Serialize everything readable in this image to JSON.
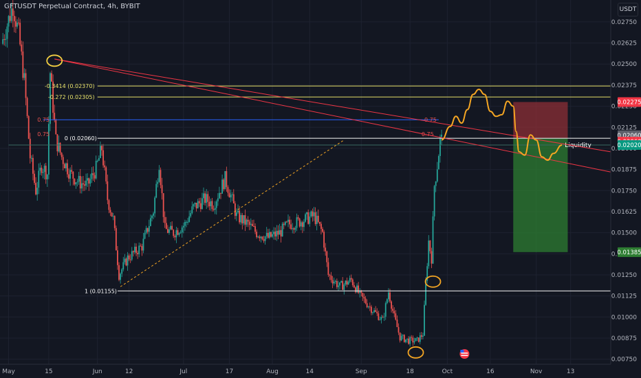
{
  "header": {
    "title": "GFTUSDT Perpetual Contract, 4h, BYBIT",
    "currency_button": "USDT"
  },
  "colors": {
    "background": "#131722",
    "grid": "#1e2230",
    "axis_text": "#b2b5be",
    "candle_up": "#26a69a",
    "candle_down": "#ef5350",
    "fib_line": "#e8e26a",
    "white_line": "#e0e0e0",
    "trend_line": "#f23645",
    "blue_line": "#2962ff",
    "projection": "#f5a623",
    "circle_yellow": "#f5d142",
    "circle_orange": "#f5a623",
    "stop_zone": "#8c2f35",
    "target_zone": "#2e7d32"
  },
  "chart_data": {
    "type": "candlestick",
    "title": "GFTUSDT Perpetual Contract, 4h, BYBIT",
    "y_axis": {
      "ticks": [
        0.0275,
        0.02625,
        0.025,
        0.02375,
        0.0225,
        0.02125,
        0.02,
        0.01875,
        0.0175,
        0.01625,
        0.015,
        0.01375,
        0.0125,
        0.01125,
        0.01,
        0.00875,
        0.0075
      ],
      "tick_labels": [
        "0.02750",
        "0.02625",
        "0.02500",
        "0.02375",
        "0.02250",
        "0.02125",
        "0.02000",
        "0.01875",
        "0.01750",
        "0.01625",
        "0.01500",
        "0.01375",
        "0.01250",
        "0.01125",
        "0.01000",
        "0.00875",
        "0.00750"
      ],
      "range": [
        0.0072,
        0.0288
      ]
    },
    "x_axis": {
      "tick_labels": [
        "May",
        "15",
        "Jun",
        "12",
        "Jul",
        "17",
        "Aug",
        "14",
        "Sep",
        "18",
        "Oct",
        "16",
        "Nov",
        "13"
      ],
      "tick_days": [
        0,
        14,
        31,
        42,
        61,
        77,
        92,
        105,
        123,
        140,
        153,
        168,
        184,
        196
      ],
      "range_days": [
        -3,
        210
      ]
    },
    "price_waypoints": [
      {
        "day": -2,
        "price": 0.0262
      },
      {
        "day": 2,
        "price": 0.0285
      },
      {
        "day": 4,
        "price": 0.0268
      },
      {
        "day": 6,
        "price": 0.024
      },
      {
        "day": 8,
        "price": 0.0195
      },
      {
        "day": 10,
        "price": 0.0175
      },
      {
        "day": 12,
        "price": 0.019
      },
      {
        "day": 14,
        "price": 0.0185
      },
      {
        "day": 15,
        "price": 0.0245
      },
      {
        "day": 17,
        "price": 0.0205
      },
      {
        "day": 19,
        "price": 0.0195
      },
      {
        "day": 22,
        "price": 0.0185
      },
      {
        "day": 25,
        "price": 0.018
      },
      {
        "day": 28,
        "price": 0.0178
      },
      {
        "day": 31,
        "price": 0.0188
      },
      {
        "day": 33,
        "price": 0.02
      },
      {
        "day": 35,
        "price": 0.017
      },
      {
        "day": 37,
        "price": 0.0158
      },
      {
        "day": 39,
        "price": 0.0125
      },
      {
        "day": 42,
        "price": 0.0135
      },
      {
        "day": 47,
        "price": 0.0142
      },
      {
        "day": 51,
        "price": 0.0163
      },
      {
        "day": 53,
        "price": 0.0192
      },
      {
        "day": 55,
        "price": 0.0152
      },
      {
        "day": 58,
        "price": 0.015
      },
      {
        "day": 62,
        "price": 0.0155
      },
      {
        "day": 65,
        "price": 0.0165
      },
      {
        "day": 69,
        "price": 0.017
      },
      {
        "day": 72,
        "price": 0.0167
      },
      {
        "day": 76,
        "price": 0.0182
      },
      {
        "day": 78,
        "price": 0.0172
      },
      {
        "day": 80,
        "price": 0.016
      },
      {
        "day": 84,
        "price": 0.0155
      },
      {
        "day": 87,
        "price": 0.015
      },
      {
        "day": 91,
        "price": 0.0147
      },
      {
        "day": 95,
        "price": 0.015
      },
      {
        "day": 98,
        "price": 0.0155
      },
      {
        "day": 101,
        "price": 0.0156
      },
      {
        "day": 104,
        "price": 0.0158
      },
      {
        "day": 107,
        "price": 0.016
      },
      {
        "day": 110,
        "price": 0.015
      },
      {
        "day": 112,
        "price": 0.0125
      },
      {
        "day": 116,
        "price": 0.0118
      },
      {
        "day": 120,
        "price": 0.0122
      },
      {
        "day": 123,
        "price": 0.0113
      },
      {
        "day": 127,
        "price": 0.0105
      },
      {
        "day": 131,
        "price": 0.0098
      },
      {
        "day": 133,
        "price": 0.0115
      },
      {
        "day": 135,
        "price": 0.01
      },
      {
        "day": 137,
        "price": 0.0088
      },
      {
        "day": 140,
        "price": 0.0086
      },
      {
        "day": 143,
        "price": 0.0086
      },
      {
        "day": 145,
        "price": 0.009
      },
      {
        "day": 146,
        "price": 0.012
      },
      {
        "day": 147,
        "price": 0.0145
      },
      {
        "day": 148,
        "price": 0.0135
      },
      {
        "day": 149,
        "price": 0.0178
      },
      {
        "day": 150,
        "price": 0.019
      },
      {
        "day": 151,
        "price": 0.0205
      }
    ],
    "projection_path": [
      {
        "day": 151,
        "price": 0.0205
      },
      {
        "day": 154,
        "price": 0.0213
      },
      {
        "day": 156,
        "price": 0.0219
      },
      {
        "day": 158,
        "price": 0.0215
      },
      {
        "day": 160,
        "price": 0.0223
      },
      {
        "day": 162,
        "price": 0.0232
      },
      {
        "day": 164,
        "price": 0.0235
      },
      {
        "day": 166,
        "price": 0.0232
      },
      {
        "day": 168,
        "price": 0.0222
      },
      {
        "day": 170,
        "price": 0.0219
      },
      {
        "day": 172,
        "price": 0.022
      },
      {
        "day": 174,
        "price": 0.0228
      },
      {
        "day": 176,
        "price": 0.0225
      },
      {
        "day": 177,
        "price": 0.021
      },
      {
        "day": 178,
        "price": 0.0198
      },
      {
        "day": 180,
        "price": 0.0196
      },
      {
        "day": 182,
        "price": 0.0208
      },
      {
        "day": 184,
        "price": 0.0205
      },
      {
        "day": 186,
        "price": 0.0195
      },
      {
        "day": 188,
        "price": 0.0193
      },
      {
        "day": 190,
        "price": 0.0197
      },
      {
        "day": 193,
        "price": 0.0202
      }
    ],
    "fib_levels": [
      {
        "label": "-0.3414 (0.02370)",
        "price": 0.0237
      },
      {
        "label": "-0.272 (0.02305)",
        "price": 0.02305
      }
    ],
    "level_lines": [
      {
        "label": "0 (0.02060)",
        "price": 0.0206
      },
      {
        "label": "1 (0.01155)",
        "price": 0.01155
      }
    ],
    "blue_level": {
      "price": 0.0217,
      "labels": [
        "0.75",
        "0.75",
        "0.75",
        "0.75"
      ]
    },
    "liquidity_line": {
      "label": "Liquidity",
      "price": 0.0202
    },
    "trend_lines": [
      {
        "from": {
          "day": 16,
          "price": 0.0253
        },
        "to": {
          "day": 210,
          "price": 0.0198
        }
      },
      {
        "from": {
          "day": 16,
          "price": 0.0253
        },
        "to": {
          "day": 210,
          "price": 0.0186
        }
      }
    ],
    "dashed_trend": {
      "from": {
        "day": 39,
        "price": 0.0118
      },
      "to": {
        "day": 117,
        "price": 0.0205
      }
    },
    "position_tool": {
      "day_start": 176,
      "day_end": 195,
      "stop": 0.02275,
      "entry": 0.0206,
      "target": 0.01385
    },
    "price_tags": [
      {
        "label": "0.02275",
        "price": 0.02275,
        "color": "#f23645"
      },
      {
        "label": "0.02060",
        "price": 0.02078,
        "color": "#5d606b"
      },
      {
        "label": "0.02060",
        "price": 0.0204,
        "color": "#f23645"
      },
      {
        "label": "0.02020",
        "price": 0.0202,
        "color": "#089981"
      },
      {
        "label": "0.01385",
        "price": 0.01385,
        "color": "#2e7d32"
      }
    ],
    "circles": [
      {
        "day": 16,
        "price": 0.0252,
        "color": "yellow"
      },
      {
        "day": 148,
        "price": 0.0121,
        "color": "orange"
      },
      {
        "day": 142,
        "price": 0.0079,
        "color": "orange"
      }
    ],
    "event_marker_day": 159
  }
}
